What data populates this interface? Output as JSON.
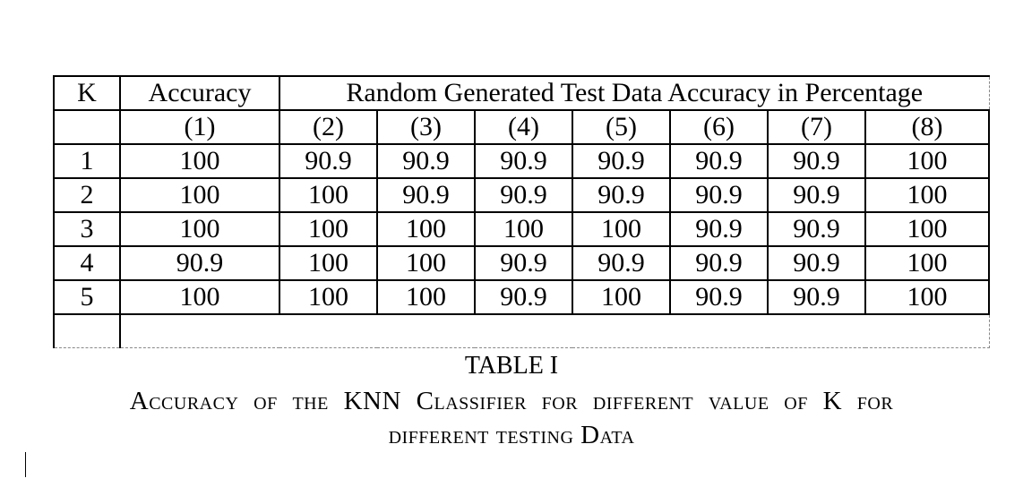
{
  "table": {
    "header": {
      "k": "K",
      "accuracy": "Accuracy",
      "random_group": "Random Generated Test Data Accuracy in Percentage"
    },
    "subheader": [
      "",
      "(1)",
      "(2)",
      "(3)",
      "(4)",
      "(5)",
      "(6)",
      "(7)",
      "(8)"
    ],
    "rows": [
      [
        "1",
        "100",
        "90.9",
        "90.9",
        "90.9",
        "90.9",
        "90.9",
        "90.9",
        "100"
      ],
      [
        "2",
        "100",
        "100",
        "90.9",
        "90.9",
        "90.9",
        "90.9",
        "90.9",
        "100"
      ],
      [
        "3",
        "100",
        "100",
        "100",
        "100",
        "100",
        "90.9",
        "90.9",
        "100"
      ],
      [
        "4",
        "90.9",
        "100",
        "100",
        "90.9",
        "90.9",
        "90.9",
        "90.9",
        "100"
      ],
      [
        "5",
        "100",
        "100",
        "100",
        "90.9",
        "100",
        "90.9",
        "90.9",
        "100"
      ]
    ]
  },
  "caption": {
    "title": "TABLE I",
    "line1": "Accuracy of the KNN Classifier for different value of K for",
    "line2": "different testing Data"
  }
}
